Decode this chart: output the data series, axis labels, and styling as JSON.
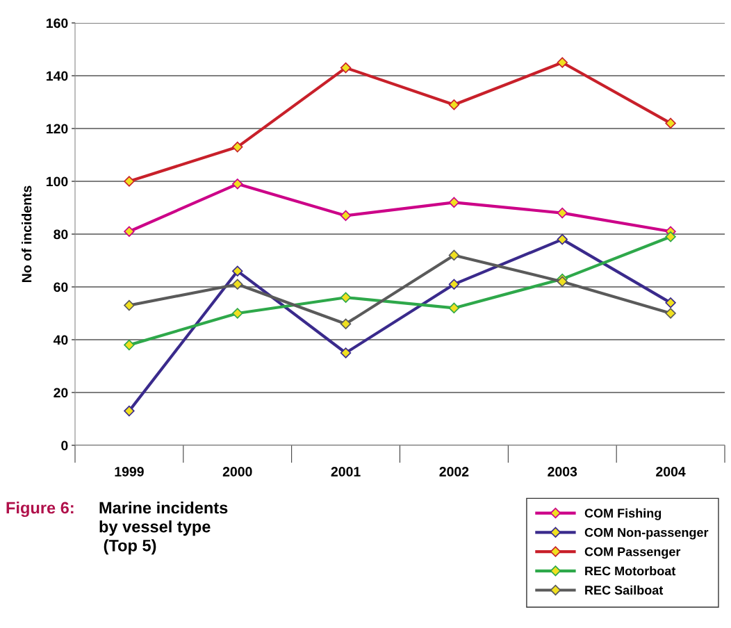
{
  "chart_data": {
    "type": "line",
    "title": "Marine incidents\nby vessel type\n (Top 5)",
    "ylabel": "No of incidents",
    "annotations": [
      "Figure 6:"
    ],
    "categories": [
      "1999",
      "2000",
      "2001",
      "2002",
      "2003",
      "2004"
    ],
    "series": [
      {
        "name": "COM Fishing",
        "color": "#cc0088",
        "values": [
          81,
          99,
          87,
          92,
          88,
          81
        ]
      },
      {
        "name": "COM Non-passenger",
        "color": "#3a2a8c",
        "values": [
          13,
          66,
          35,
          61,
          78,
          54
        ]
      },
      {
        "name": "COM Passenger",
        "color": "#c8202a",
        "values": [
          100,
          113,
          143,
          129,
          145,
          122
        ]
      },
      {
        "name": "REC Motorboat",
        "color": "#2ea84a",
        "values": [
          38,
          50,
          56,
          52,
          63,
          79
        ]
      },
      {
        "name": "REC Sailboat",
        "color": "#5a5a5a",
        "values": [
          53,
          61,
          46,
          72,
          62,
          50
        ]
      }
    ],
    "ylim": [
      0,
      160
    ],
    "yticks": [
      0,
      20,
      40,
      60,
      80,
      100,
      120,
      140,
      160
    ],
    "grid": "y",
    "legend": "bottom right",
    "marker": "diamond",
    "line_style": "solid"
  }
}
